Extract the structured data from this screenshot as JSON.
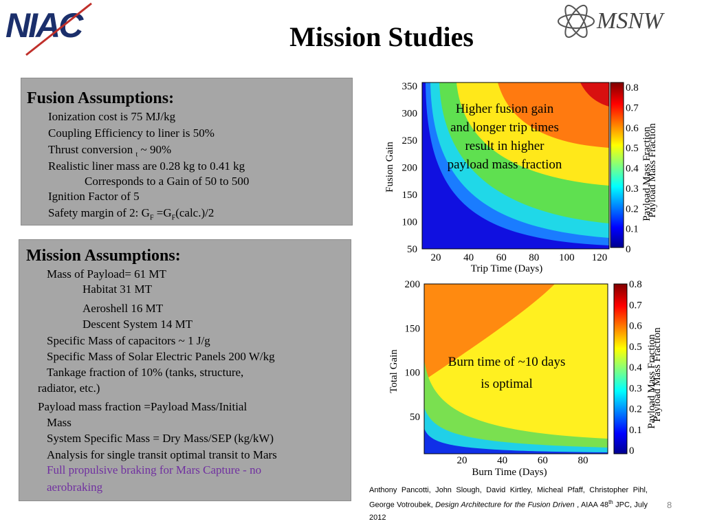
{
  "header": {
    "title": "Mission Studies",
    "left_logo": "NIAC",
    "right_logo": "MSNW"
  },
  "fusion_box": {
    "heading": "Fusion Assumptions:",
    "lines": [
      [
        "Ionization cost is 75 MJ/kg"
      ],
      [
        "Coupling Efficiency to liner  is 50%"
      ],
      [
        "Thrust conversion ",
        "t",
        " ~ 90%"
      ],
      [
        "Realistic liner mass are 0.28 kg to 0.41 kg"
      ],
      [
        "Corresponds to a Gain of 50 to 500"
      ],
      [
        "Ignition Factor of 5"
      ],
      [
        "Safety margin of 2: G",
        "F",
        " =G",
        "F",
        "(calc.)/2"
      ]
    ]
  },
  "mission_box": {
    "heading": "Mission Assumptions:",
    "lines": [
      "Mass of Payload= 61 MT",
      "Habitat 31 MT",
      "Aeroshell 16 MT",
      "Descent System 14 MT",
      "Specific Mass of capacitors   ~  1 J/g",
      "Specific Mass of  Solar Electric Panels 200 W/kg",
      "Tankage fraction of 10% (tanks, structure,",
      "radiator, etc.)",
      "Payload mass fraction =Payload Mass/Initial",
      "Mass",
      "System Specific Mass = Dry Mass/SEP (kg/kW)",
      "Analysis for single transit optimal transit to Mars",
      "Full propulsive braking for Mars Capture - no",
      "aerobraking"
    ]
  },
  "plot1": {
    "xlabel": "Trip Time (Days)",
    "ylabel": "Fusion Gain",
    "cbar_label": [
      "Payload Mass Fraction",
      "Payload Mass Fraction"
    ],
    "xticks": [
      20,
      40,
      60,
      80,
      100,
      120
    ],
    "yticks": [
      350,
      300,
      250,
      200,
      150,
      100,
      50
    ],
    "cbar_ticks": [
      0.8,
      0.7,
      0.6,
      0.5,
      0.4,
      0.3,
      0.2,
      0.1,
      0
    ],
    "annotation": [
      "Higher fusion gain",
      "and longer trip times",
      "result in higher",
      "payload mass fraction"
    ]
  },
  "plot2": {
    "xlabel": "Burn Time (Days)",
    "ylabel": "Total Gain",
    "cbar_label": [
      "Payload Mass Fraction",
      "Payload Mass Fraction"
    ],
    "xticks": [
      20,
      40,
      60,
      80
    ],
    "yticks": [
      200,
      150,
      100,
      50
    ],
    "cbar_ticks": [
      0.8,
      0.7,
      0.6,
      0.5,
      0.4,
      0.3,
      0.2,
      0.1,
      0
    ],
    "annotation": [
      "Burn time of ~10 days",
      "is optimal"
    ]
  },
  "citation": {
    "parts": [
      "Anthony Pancotti, John Slough, David Kirtley, Micheal Pfaff, Christopher Pihl, George Votroubek, ",
      "Design Architecture for the Fusion Driven",
      " , AIAA 48",
      "th",
      " JPC, July 2012"
    ]
  },
  "page_number": "8"
}
